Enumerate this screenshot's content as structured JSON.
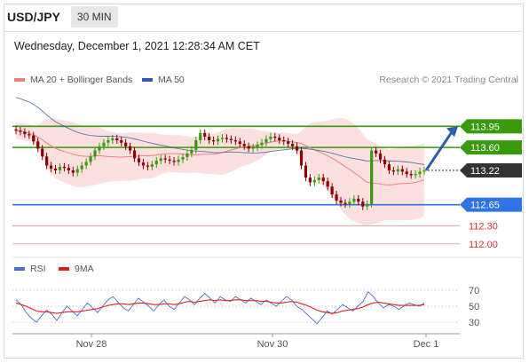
{
  "header": {
    "symbol": "USD/JPY",
    "period": "30 MIN",
    "datetime": "Wednesday, December 1, 2021 12:28:34 AM CET"
  },
  "legend": [
    {
      "name": "MA 20 + Bollinger Bands",
      "color": "#f08080"
    },
    {
      "name": "MA 50",
      "color": "#2e5aa8"
    }
  ],
  "credit": "Research © 2021 Trading Central",
  "chart_data": [
    {
      "type": "candlestick",
      "ylim": [
        111.85,
        114.5
      ],
      "levels": [
        {
          "value": 113.95,
          "label": "113.95",
          "color": "#3a9a0e",
          "style": "filled"
        },
        {
          "value": 113.6,
          "label": "113.60",
          "color": "#3a9a0e",
          "style": "filled"
        },
        {
          "value": 113.22,
          "label": "113.22",
          "color": "#333333",
          "style": "filled-current"
        },
        {
          "value": 112.65,
          "label": "112.65",
          "color": "#2f73e6",
          "style": "filled"
        },
        {
          "value": 112.3,
          "label": "112.30",
          "color": "#e03030",
          "style": "text"
        },
        {
          "value": 112.0,
          "label": "112.00",
          "color": "#e03030",
          "style": "text"
        }
      ],
      "close_series": [
        113.88,
        113.86,
        113.82,
        113.8,
        113.7,
        113.58,
        113.45,
        113.3,
        113.25,
        113.22,
        113.28,
        113.26,
        113.22,
        113.18,
        113.24,
        113.3,
        113.36,
        113.45,
        113.55,
        113.62,
        113.68,
        113.72,
        113.75,
        113.72,
        113.68,
        113.62,
        113.55,
        113.42,
        113.35,
        113.3,
        113.28,
        113.32,
        113.38,
        113.42,
        113.4,
        113.38,
        113.36,
        113.4,
        113.44,
        113.5,
        113.56,
        113.72,
        113.84,
        113.78,
        113.72,
        113.7,
        113.74,
        113.76,
        113.74,
        113.72,
        113.7,
        113.66,
        113.62,
        113.58,
        113.6,
        113.64,
        113.68,
        113.74,
        113.78,
        113.76,
        113.72,
        113.7,
        113.66,
        113.62,
        113.55,
        113.3,
        113.1,
        113.02,
        113.06,
        113.1,
        113.04,
        112.95,
        112.82,
        112.72,
        112.68,
        112.66,
        112.7,
        112.75,
        112.7,
        112.62,
        112.66,
        113.55,
        113.5,
        113.4,
        113.32,
        113.22,
        113.2,
        113.24,
        113.2,
        113.16,
        113.14,
        113.16,
        113.2,
        113.22
      ],
      "arrow": {
        "from": 113.22,
        "to": 113.95
      },
      "x_ticks": [
        "Nov 28",
        "Nov 30",
        "Dec 1"
      ]
    },
    {
      "type": "line",
      "ylim": [
        20,
        80
      ],
      "yticks": [
        70,
        50,
        30
      ],
      "series": [
        {
          "name": "RSI",
          "color": "#4a6fd0"
        },
        {
          "name": "9MA",
          "color": "#e02020"
        }
      ],
      "rsi": [
        58,
        52,
        42,
        35,
        30,
        38,
        45,
        40,
        32,
        42,
        50,
        44,
        38,
        46,
        54,
        48,
        42,
        50,
        58,
        62,
        55,
        48,
        44,
        52,
        60,
        55,
        50,
        44,
        52,
        58,
        50,
        46,
        54,
        62,
        58,
        52,
        60,
        66,
        60,
        54,
        62,
        58,
        56,
        62,
        58,
        54,
        60,
        56,
        52,
        58,
        54,
        50,
        56,
        62,
        58,
        50,
        46,
        40,
        34,
        28,
        36,
        44,
        40,
        46,
        52,
        48,
        44,
        50,
        56,
        68,
        62,
        54,
        48,
        52,
        50,
        46,
        50,
        54,
        52,
        50,
        54
      ],
      "ma9": [
        54,
        52,
        50,
        47,
        44,
        43,
        43,
        42,
        41,
        42,
        43,
        43,
        43,
        44,
        45,
        46,
        47,
        49,
        51,
        52,
        53,
        53,
        52,
        53,
        54,
        54,
        53,
        52,
        52,
        53,
        53,
        52,
        53,
        55,
        56,
        55,
        56,
        57,
        58,
        57,
        58,
        57,
        57,
        58,
        58,
        57,
        57,
        57,
        56,
        56,
        55,
        54,
        54,
        55,
        56,
        55,
        53,
        51,
        48,
        45,
        43,
        42,
        41,
        42,
        44,
        45,
        46,
        47,
        49,
        52,
        54,
        55,
        54,
        53,
        52,
        51,
        51,
        51,
        51,
        51,
        52
      ]
    }
  ]
}
